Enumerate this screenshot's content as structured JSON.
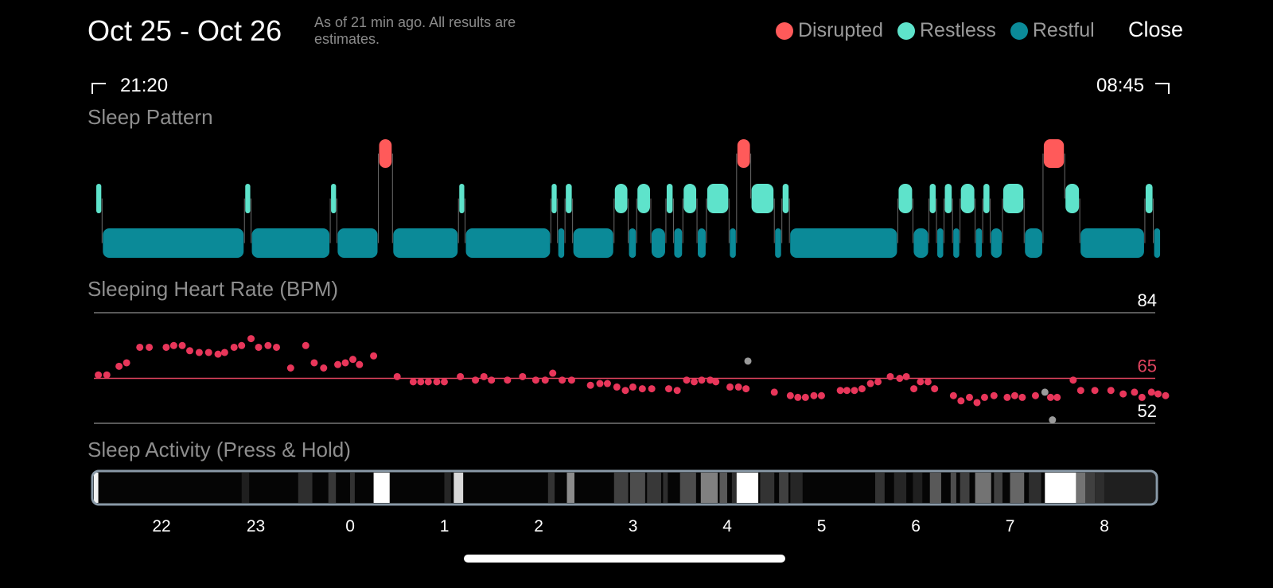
{
  "header": {
    "title": "Oct 25 - Oct 26",
    "subtitle": "As of 21 min ago. All results are estimates.",
    "close_label": "Close"
  },
  "legend": [
    {
      "label": "Disrupted",
      "color": "#ff5a5a"
    },
    {
      "label": "Restless",
      "color": "#5ee3cb"
    },
    {
      "label": "Restful",
      "color": "#0b8a98"
    }
  ],
  "range": {
    "start": "21:20",
    "end": "08:45"
  },
  "sections": {
    "pattern": "Sleep Pattern",
    "heart_rate": "Sleeping Heart Rate (BPM)",
    "activity": "Sleep Activity (Press & Hold)"
  },
  "colors": {
    "disrupted": "#ff5a5a",
    "restless": "#5ee3cb",
    "restful": "#0b8a98",
    "hr_dot": "#e8365a",
    "hr_mid": "#e0445f",
    "outlier": "#9a9a9a"
  },
  "chart_data": [
    {
      "type": "timeline",
      "name": "Sleep Pattern",
      "x_unit": "hours since midnight Oct 25",
      "x_range": [
        21.333,
        32.75
      ],
      "stages": [
        "Disrupted",
        "Restless",
        "Restful"
      ],
      "segments": [
        {
          "stage": "Restless",
          "start": 21.35,
          "end": 21.42
        },
        {
          "stage": "Restful",
          "start": 21.42,
          "end": 22.93
        },
        {
          "stage": "Restless",
          "start": 22.93,
          "end": 23.0
        },
        {
          "stage": "Restful",
          "start": 23.0,
          "end": 23.84
        },
        {
          "stage": "Restless",
          "start": 23.84,
          "end": 23.91
        },
        {
          "stage": "Restful",
          "start": 23.91,
          "end": 24.35
        },
        {
          "stage": "Disrupted",
          "start": 24.35,
          "end": 24.5
        },
        {
          "stage": "Restful",
          "start": 24.5,
          "end": 25.2
        },
        {
          "stage": "Restless",
          "start": 25.2,
          "end": 25.27
        },
        {
          "stage": "Restful",
          "start": 25.27,
          "end": 26.18
        },
        {
          "stage": "Restless",
          "start": 26.18,
          "end": 26.25
        },
        {
          "stage": "Restful",
          "start": 26.25,
          "end": 26.33
        },
        {
          "stage": "Restless",
          "start": 26.33,
          "end": 26.41
        },
        {
          "stage": "Restful",
          "start": 26.41,
          "end": 26.85
        },
        {
          "stage": "Restless",
          "start": 26.85,
          "end": 27.0
        },
        {
          "stage": "Restful",
          "start": 27.0,
          "end": 27.09
        },
        {
          "stage": "Restless",
          "start": 27.09,
          "end": 27.24
        },
        {
          "stage": "Restful",
          "start": 27.24,
          "end": 27.4
        },
        {
          "stage": "Restless",
          "start": 27.4,
          "end": 27.48
        },
        {
          "stage": "Restful",
          "start": 27.48,
          "end": 27.58
        },
        {
          "stage": "Restless",
          "start": 27.58,
          "end": 27.73
        },
        {
          "stage": "Restful",
          "start": 27.73,
          "end": 27.83
        },
        {
          "stage": "Restless",
          "start": 27.83,
          "end": 28.07
        },
        {
          "stage": "Restful",
          "start": 28.07,
          "end": 28.15
        },
        {
          "stage": "Disrupted",
          "start": 28.15,
          "end": 28.3
        },
        {
          "stage": "Restless",
          "start": 28.3,
          "end": 28.55
        },
        {
          "stage": "Restful",
          "start": 28.55,
          "end": 28.63
        },
        {
          "stage": "Restless",
          "start": 28.63,
          "end": 28.71
        },
        {
          "stage": "Restful",
          "start": 28.71,
          "end": 29.86
        },
        {
          "stage": "Restless",
          "start": 29.86,
          "end": 30.02
        },
        {
          "stage": "Restful",
          "start": 30.02,
          "end": 30.19
        },
        {
          "stage": "Restless",
          "start": 30.19,
          "end": 30.27
        },
        {
          "stage": "Restful",
          "start": 30.27,
          "end": 30.35
        },
        {
          "stage": "Restless",
          "start": 30.35,
          "end": 30.44
        },
        {
          "stage": "Restful",
          "start": 30.44,
          "end": 30.52
        },
        {
          "stage": "Restless",
          "start": 30.52,
          "end": 30.68
        },
        {
          "stage": "Restful",
          "start": 30.68,
          "end": 30.76
        },
        {
          "stage": "Restless",
          "start": 30.76,
          "end": 30.84
        },
        {
          "stage": "Restful",
          "start": 30.84,
          "end": 30.97
        },
        {
          "stage": "Restless",
          "start": 30.97,
          "end": 31.2
        },
        {
          "stage": "Restful",
          "start": 31.2,
          "end": 31.4
        },
        {
          "stage": "Disrupted",
          "start": 31.4,
          "end": 31.63
        },
        {
          "stage": "Restless",
          "start": 31.63,
          "end": 31.79
        },
        {
          "stage": "Restful",
          "start": 31.79,
          "end": 32.48
        },
        {
          "stage": "Restless",
          "start": 32.48,
          "end": 32.57
        },
        {
          "stage": "Restful",
          "start": 32.57,
          "end": 32.65
        }
      ]
    },
    {
      "type": "scatter",
      "name": "Sleeping Heart Rate (BPM)",
      "x_unit": "hours since midnight Oct 25",
      "ylim": [
        52,
        84
      ],
      "reference_lines": [
        {
          "value": 84,
          "label": "84",
          "color": "#777777"
        },
        {
          "value": 65,
          "label": "65",
          "color": "#e0445f"
        },
        {
          "value": 52,
          "label": "52",
          "color": "#777777"
        }
      ],
      "points": [
        [
          21.38,
          66
        ],
        [
          21.47,
          66
        ],
        [
          21.6,
          68.5
        ],
        [
          21.68,
          69.5
        ],
        [
          21.82,
          74
        ],
        [
          21.92,
          74
        ],
        [
          22.1,
          74
        ],
        [
          22.18,
          74.5
        ],
        [
          22.27,
          74.5
        ],
        [
          22.35,
          73
        ],
        [
          22.45,
          72.5
        ],
        [
          22.55,
          72.5
        ],
        [
          22.65,
          72
        ],
        [
          22.72,
          72.5
        ],
        [
          22.82,
          74
        ],
        [
          22.9,
          74.5
        ],
        [
          23.0,
          76.5
        ],
        [
          23.08,
          74
        ],
        [
          23.18,
          74.5
        ],
        [
          23.27,
          74
        ],
        [
          23.42,
          68
        ],
        [
          23.58,
          74.5
        ],
        [
          23.67,
          69.5
        ],
        [
          23.77,
          68
        ],
        [
          23.92,
          69
        ],
        [
          24.0,
          69.5
        ],
        [
          24.08,
          70.5
        ],
        [
          24.15,
          69
        ],
        [
          24.3,
          71.5
        ],
        [
          24.55,
          65.5
        ],
        [
          24.72,
          64
        ],
        [
          24.8,
          64
        ],
        [
          24.88,
          64
        ],
        [
          24.97,
          64
        ],
        [
          25.05,
          64
        ],
        [
          25.22,
          65.5
        ],
        [
          25.38,
          64.5
        ],
        [
          25.47,
          65.5
        ],
        [
          25.55,
          64.5
        ],
        [
          25.72,
          64.5
        ],
        [
          25.88,
          65.5
        ],
        [
          26.02,
          64.5
        ],
        [
          26.12,
          64.5
        ],
        [
          26.2,
          66.5
        ],
        [
          26.3,
          64.5
        ],
        [
          26.4,
          64.5
        ],
        [
          26.6,
          63
        ],
        [
          26.7,
          63.5
        ],
        [
          26.78,
          63.5
        ],
        [
          26.88,
          62.5
        ],
        [
          26.97,
          61.5
        ],
        [
          27.05,
          62.5
        ],
        [
          27.15,
          62
        ],
        [
          27.25,
          62
        ],
        [
          27.43,
          62
        ],
        [
          27.52,
          61.5
        ],
        [
          27.62,
          64.5
        ],
        [
          27.7,
          64
        ],
        [
          27.78,
          64.5
        ],
        [
          27.87,
          64.5
        ],
        [
          27.93,
          64
        ],
        [
          28.08,
          62.5
        ],
        [
          28.17,
          62.5
        ],
        [
          28.25,
          62
        ],
        [
          28.55,
          61
        ],
        [
          28.72,
          60
        ],
        [
          28.8,
          59.5
        ],
        [
          28.88,
          59.5
        ],
        [
          28.97,
          60
        ],
        [
          29.05,
          60
        ],
        [
          29.25,
          61.5
        ],
        [
          29.32,
          61.5
        ],
        [
          29.4,
          61.5
        ],
        [
          29.48,
          62
        ],
        [
          29.57,
          63.5
        ],
        [
          29.65,
          64
        ],
        [
          29.78,
          65.5
        ],
        [
          29.88,
          65
        ],
        [
          29.95,
          65.5
        ],
        [
          30.03,
          62
        ],
        [
          30.1,
          64
        ],
        [
          30.18,
          64
        ],
        [
          30.25,
          62
        ],
        [
          30.45,
          60
        ],
        [
          30.53,
          58.5
        ],
        [
          30.62,
          59.5
        ],
        [
          30.7,
          58
        ],
        [
          30.78,
          59.5
        ],
        [
          30.88,
          60
        ],
        [
          31.02,
          59.5
        ],
        [
          31.1,
          60
        ],
        [
          31.18,
          59.5
        ],
        [
          31.32,
          60
        ],
        [
          31.48,
          59.5
        ],
        [
          31.55,
          59.5
        ],
        [
          31.72,
          64.5
        ],
        [
          31.8,
          61.5
        ],
        [
          31.95,
          61.5
        ],
        [
          32.12,
          61.5
        ],
        [
          32.25,
          60.5
        ],
        [
          32.37,
          61
        ],
        [
          32.45,
          59.5
        ],
        [
          32.55,
          61
        ],
        [
          32.62,
          60.5
        ],
        [
          32.7,
          60
        ]
      ],
      "outliers": [
        [
          28.27,
          70
        ],
        [
          31.42,
          61
        ],
        [
          31.5,
          53
        ]
      ]
    },
    {
      "type": "heatmap",
      "name": "Sleep Activity (Press & Hold)",
      "x_unit": "hours since midnight Oct 25",
      "x_range": [
        21.333,
        32.75
      ],
      "x_ticks": [
        "22",
        "23",
        "0",
        "1",
        "2",
        "3",
        "4",
        "5",
        "6",
        "7",
        "8"
      ],
      "cells": [
        {
          "start": 21.33,
          "end": 21.38,
          "level": 0.95
        },
        {
          "start": 22.9,
          "end": 22.98,
          "level": 0.12
        },
        {
          "start": 23.5,
          "end": 23.65,
          "level": 0.18
        },
        {
          "start": 23.82,
          "end": 23.9,
          "level": 0.22
        },
        {
          "start": 24.05,
          "end": 24.1,
          "level": 0.2
        },
        {
          "start": 24.3,
          "end": 24.47,
          "level": 1.0
        },
        {
          "start": 25.05,
          "end": 25.12,
          "level": 0.15
        },
        {
          "start": 25.15,
          "end": 25.25,
          "level": 0.85
        },
        {
          "start": 26.15,
          "end": 26.22,
          "level": 0.2
        },
        {
          "start": 26.35,
          "end": 26.43,
          "level": 0.55
        },
        {
          "start": 26.85,
          "end": 27.0,
          "level": 0.25
        },
        {
          "start": 27.02,
          "end": 27.18,
          "level": 0.3
        },
        {
          "start": 27.2,
          "end": 27.35,
          "level": 0.22
        },
        {
          "start": 27.37,
          "end": 27.42,
          "level": 0.18
        },
        {
          "start": 27.55,
          "end": 27.72,
          "level": 0.3
        },
        {
          "start": 27.77,
          "end": 27.95,
          "level": 0.5
        },
        {
          "start": 27.97,
          "end": 28.05,
          "level": 0.35
        },
        {
          "start": 28.1,
          "end": 28.15,
          "level": 0.18
        },
        {
          "start": 28.15,
          "end": 28.38,
          "level": 1.0
        },
        {
          "start": 28.4,
          "end": 28.55,
          "level": 0.2
        },
        {
          "start": 28.6,
          "end": 28.7,
          "level": 0.25
        },
        {
          "start": 28.72,
          "end": 28.85,
          "level": 0.15
        },
        {
          "start": 29.62,
          "end": 29.72,
          "level": 0.2
        },
        {
          "start": 29.82,
          "end": 29.95,
          "level": 0.15
        },
        {
          "start": 30.02,
          "end": 30.12,
          "level": 0.12
        },
        {
          "start": 30.2,
          "end": 30.32,
          "level": 0.35
        },
        {
          "start": 30.42,
          "end": 30.48,
          "level": 0.3
        },
        {
          "start": 30.52,
          "end": 30.62,
          "level": 0.25
        },
        {
          "start": 30.68,
          "end": 30.85,
          "level": 0.45
        },
        {
          "start": 30.88,
          "end": 30.97,
          "level": 0.25
        },
        {
          "start": 31.05,
          "end": 31.2,
          "level": 0.4
        },
        {
          "start": 31.25,
          "end": 31.38,
          "level": 0.18
        },
        {
          "start": 31.42,
          "end": 31.75,
          "level": 1.0
        },
        {
          "start": 31.75,
          "end": 31.85,
          "level": 0.45
        },
        {
          "start": 31.85,
          "end": 31.95,
          "level": 0.25
        },
        {
          "start": 31.95,
          "end": 32.05,
          "level": 0.18
        },
        {
          "start": 32.05,
          "end": 32.6,
          "level": 0.12
        },
        {
          "start": 32.6,
          "end": 32.7,
          "level": 0.3
        }
      ]
    }
  ]
}
